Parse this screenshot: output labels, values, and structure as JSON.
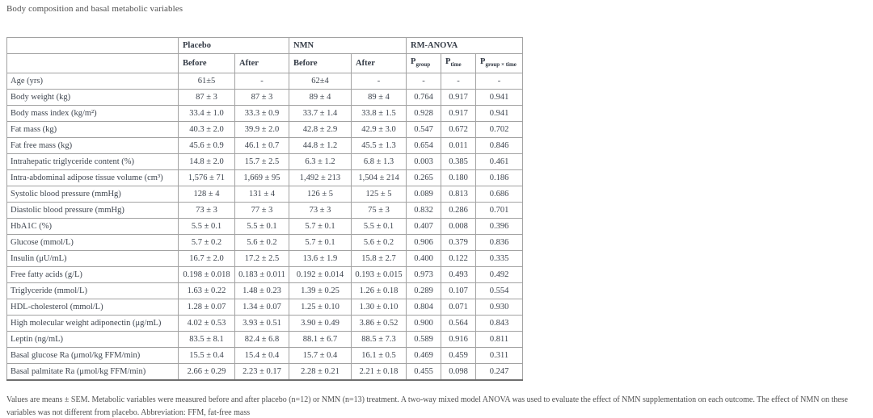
{
  "page": {
    "title": "Body composition and basal metabolic variables",
    "footnote": "Values are means ± SEM. Metabolic variables were measured before and after placebo (n=12) or NMN (n=13) treatment. A two-way mixed model ANOVA was used to evaluate the effect of NMN supplementation on each outcome. The effect of NMN on these variables was not different from placebo. Abbreviation: FFM, fat-free mass"
  },
  "table": {
    "groups": [
      "Placebo",
      "NMN",
      "RM-ANOVA"
    ],
    "sub_headers": [
      "Before",
      "After",
      "Before",
      "After"
    ],
    "p_headers": [
      {
        "base": "P",
        "sub": "group"
      },
      {
        "base": "P",
        "sub": "time"
      },
      {
        "base": "P",
        "sub": "group × time"
      }
    ],
    "rows": [
      {
        "label": "Age (yrs)",
        "values": [
          "61±5",
          "-",
          "62±4",
          "-",
          "-",
          "-",
          "-"
        ]
      },
      {
        "label": "Body weight (kg)",
        "values": [
          "87 ± 3",
          "87 ± 3",
          "89 ± 4",
          "89 ± 4",
          "0.764",
          "0.917",
          "0.941"
        ]
      },
      {
        "label": "Body mass index (kg/m²)",
        "values": [
          "33.4 ± 1.0",
          "33.3 ± 0.9",
          "33.7 ± 1.4",
          "33.8 ± 1.5",
          "0.928",
          "0.917",
          "0.941"
        ]
      },
      {
        "label": "Fat mass (kg)",
        "values": [
          "40.3 ± 2.0",
          "39.9 ± 2.0",
          "42.8 ± 2.9",
          "42.9 ± 3.0",
          "0.547",
          "0.672",
          "0.702"
        ]
      },
      {
        "label": "Fat free mass (kg)",
        "values": [
          "45.6 ± 0.9",
          "46.1 ± 0.7",
          "44.8 ± 1.2",
          "45.5 ± 1.3",
          "0.654",
          "0.011",
          "0.846"
        ]
      },
      {
        "label": "Intrahepatic triglyceride content (%)",
        "values": [
          "14.8 ± 2.0",
          "15.7 ± 2.5",
          "6.3 ± 1.2",
          "6.8 ± 1.3",
          "0.003",
          "0.385",
          "0.461"
        ]
      },
      {
        "label": "Intra-abdominal adipose tissue volume (cm³)",
        "values": [
          "1,576 ± 71",
          "1,669 ± 95",
          "1,492 ± 213",
          "1,504 ± 214",
          "0.265",
          "0.180",
          "0.186"
        ]
      },
      {
        "label": "Systolic blood pressure (mmHg)",
        "values": [
          "128 ± 4",
          "131 ± 4",
          "126 ± 5",
          "125 ± 5",
          "0.089",
          "0.813",
          "0.686"
        ]
      },
      {
        "label": "Diastolic blood pressure (mmHg)",
        "values": [
          "73 ± 3",
          "77 ± 3",
          "73 ± 3",
          "75 ± 3",
          "0.832",
          "0.286",
          "0.701"
        ]
      },
      {
        "label": "HbA1C (%)",
        "values": [
          "5.5 ± 0.1",
          "5.5 ± 0.1",
          "5.7 ± 0.1",
          "5.5 ± 0.1",
          "0.407",
          "0.008",
          "0.396"
        ]
      },
      {
        "label": "Glucose (mmol/L)",
        "values": [
          "5.7 ± 0.2",
          "5.6 ± 0.2",
          "5.7 ± 0.1",
          "5.6 ± 0.2",
          "0.906",
          "0.379",
          "0.836"
        ]
      },
      {
        "label": "Insulin (μU/mL)",
        "values": [
          "16.7 ± 2.0",
          "17.2 ± 2.5",
          "13.6 ± 1.9",
          "15.8 ± 2.7",
          "0.400",
          "0.122",
          "0.335"
        ]
      },
      {
        "label": "Free fatty acids (g/L)",
        "values": [
          "0.198 ± 0.018",
          "0.183 ± 0.011",
          "0.192 ± 0.014",
          "0.193 ± 0.015",
          "0.973",
          "0.493",
          "0.492"
        ]
      },
      {
        "label": "Triglyceride (mmol/L)",
        "values": [
          "1.63 ± 0.22",
          "1.48 ± 0.23",
          "1.39 ± 0.25",
          "1.26 ± 0.18",
          "0.289",
          "0.107",
          "0.554"
        ]
      },
      {
        "label": "HDL-cholesterol (mmol/L)",
        "values": [
          "1.28 ± 0.07",
          "1.34 ± 0.07",
          "1.25 ± 0.10",
          "1.30 ± 0.10",
          "0.804",
          "0.071",
          "0.930"
        ]
      },
      {
        "label": "High molecular weight adiponectin (μg/mL)",
        "values": [
          "4.02 ± 0.53",
          "3.93 ± 0.51",
          "3.90 ± 0.49",
          "3.86 ± 0.52",
          "0.900",
          "0.564",
          "0.843"
        ]
      },
      {
        "label": "Leptin (ng/mL)",
        "values": [
          "83.5 ± 8.1",
          "82.4 ± 6.8",
          "88.1 ± 6.7",
          "88.5 ± 7.3",
          "0.589",
          "0.916",
          "0.811"
        ]
      },
      {
        "label": "Basal glucose Ra (μmol/kg FFM/min)",
        "values": [
          "15.5 ± 0.4",
          "15.4 ± 0.4",
          "15.7 ± 0.4",
          "16.1 ± 0.5",
          "0.469",
          "0.459",
          "0.311"
        ]
      },
      {
        "label": "Basal palmitate Ra (μmol/kg FFM/min)",
        "values": [
          "2.66 ± 0.29",
          "2.23 ± 0.17",
          "2.28 ± 0.21",
          "2.21 ± 0.18",
          "0.455",
          "0.098",
          "0.247"
        ]
      }
    ]
  }
}
